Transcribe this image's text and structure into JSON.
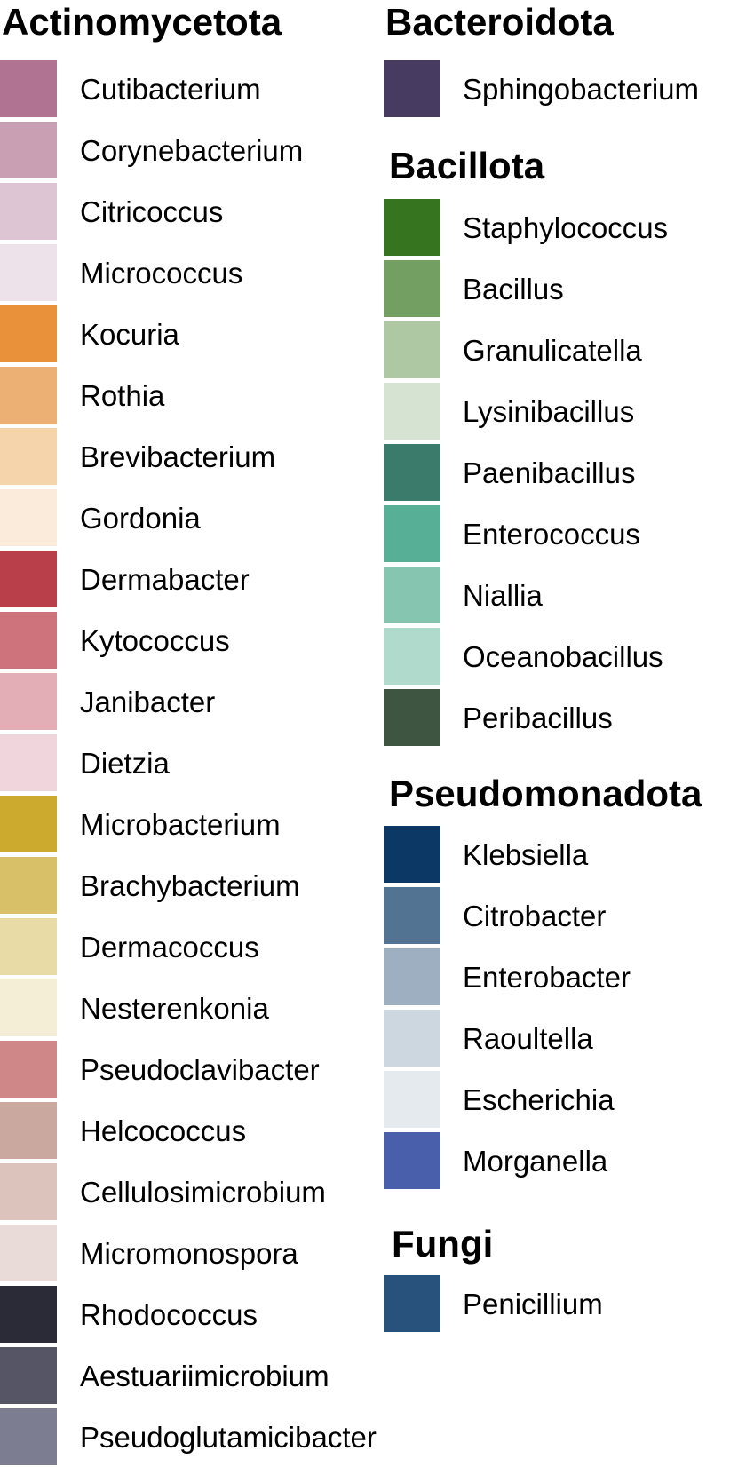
{
  "legend": {
    "groups": [
      {
        "title": "Actinomycetota",
        "items": [
          {
            "label": "Cutibacterium",
            "color": "#b07392"
          },
          {
            "label": "Corynebacterium",
            "color": "#c99fb3"
          },
          {
            "label": "Citricoccus",
            "color": "#ddc5d3"
          },
          {
            "label": "Micrococcus",
            "color": "#ede2ea"
          },
          {
            "label": "Kocuria",
            "color": "#e8903a"
          },
          {
            "label": "Rothia",
            "color": "#ecb075"
          },
          {
            "label": "Brevibacterium",
            "color": "#f5d3ab"
          },
          {
            "label": "Gordonia",
            "color": "#faebdb"
          },
          {
            "label": "Dermabacter",
            "color": "#b9404a"
          },
          {
            "label": "Kytococcus",
            "color": "#ce727c"
          },
          {
            "label": "Janibacter",
            "color": "#e4aeb6"
          },
          {
            "label": "Dietzia",
            "color": "#f0d5dc"
          },
          {
            "label": "Microbacterium",
            "color": "#ccaa2e"
          },
          {
            "label": "Brachybacterium",
            "color": "#d8c068"
          },
          {
            "label": "Dermacoccus",
            "color": "#e8dba5"
          },
          {
            "label": "Nesterenkonia",
            "color": "#f4eed6"
          },
          {
            "label": "Pseudoclavibacter",
            "color": "#cf8787"
          },
          {
            "label": "Helcococcus",
            "color": "#cba89f"
          },
          {
            "label": "Cellulosimicrobium",
            "color": "#dcc3bc"
          },
          {
            "label": "Micromonospora",
            "color": "#e9dcd8"
          },
          {
            "label": "Rhodococcus",
            "color": "#2a2b37"
          },
          {
            "label": "Aestuariimicrobium",
            "color": "#565566"
          },
          {
            "label": "Pseudoglutamicibacter",
            "color": "#7d7d91"
          }
        ]
      },
      {
        "title": "Bacteroidota",
        "items": [
          {
            "label": "Sphingobacterium",
            "color": "#483b62"
          }
        ]
      },
      {
        "title": "Bacillota",
        "items": [
          {
            "label": "Staphylococcus",
            "color": "#36741f"
          },
          {
            "label": "Bacillus",
            "color": "#749f62"
          },
          {
            "label": "Granulicatella",
            "color": "#aec8a4"
          },
          {
            "label": "Lysinibacillus",
            "color": "#d6e3d2"
          },
          {
            "label": "Paenibacillus",
            "color": "#3b7b6b"
          },
          {
            "label": "Enterococcus",
            "color": "#57b096"
          },
          {
            "label": "Niallia",
            "color": "#86c6b1"
          },
          {
            "label": "Oceanobacillus",
            "color": "#b0dbcc"
          },
          {
            "label": "Peribacillus",
            "color": "#3e5541"
          }
        ]
      },
      {
        "title": "Pseudomonadota",
        "items": [
          {
            "label": "Klebsiella",
            "color": "#0b3865"
          },
          {
            "label": "Citrobacter",
            "color": "#537392"
          },
          {
            "label": "Enterobacter",
            "color": "#9dafc1"
          },
          {
            "label": "Raoultella",
            "color": "#cdd7e0"
          },
          {
            "label": "Escherichia",
            "color": "#e5eaee"
          },
          {
            "label": "Morganella",
            "color": "#4a5fab"
          }
        ]
      },
      {
        "title": "Fungi",
        "items": [
          {
            "label": "Penicillium",
            "color": "#28517b"
          }
        ]
      }
    ]
  }
}
